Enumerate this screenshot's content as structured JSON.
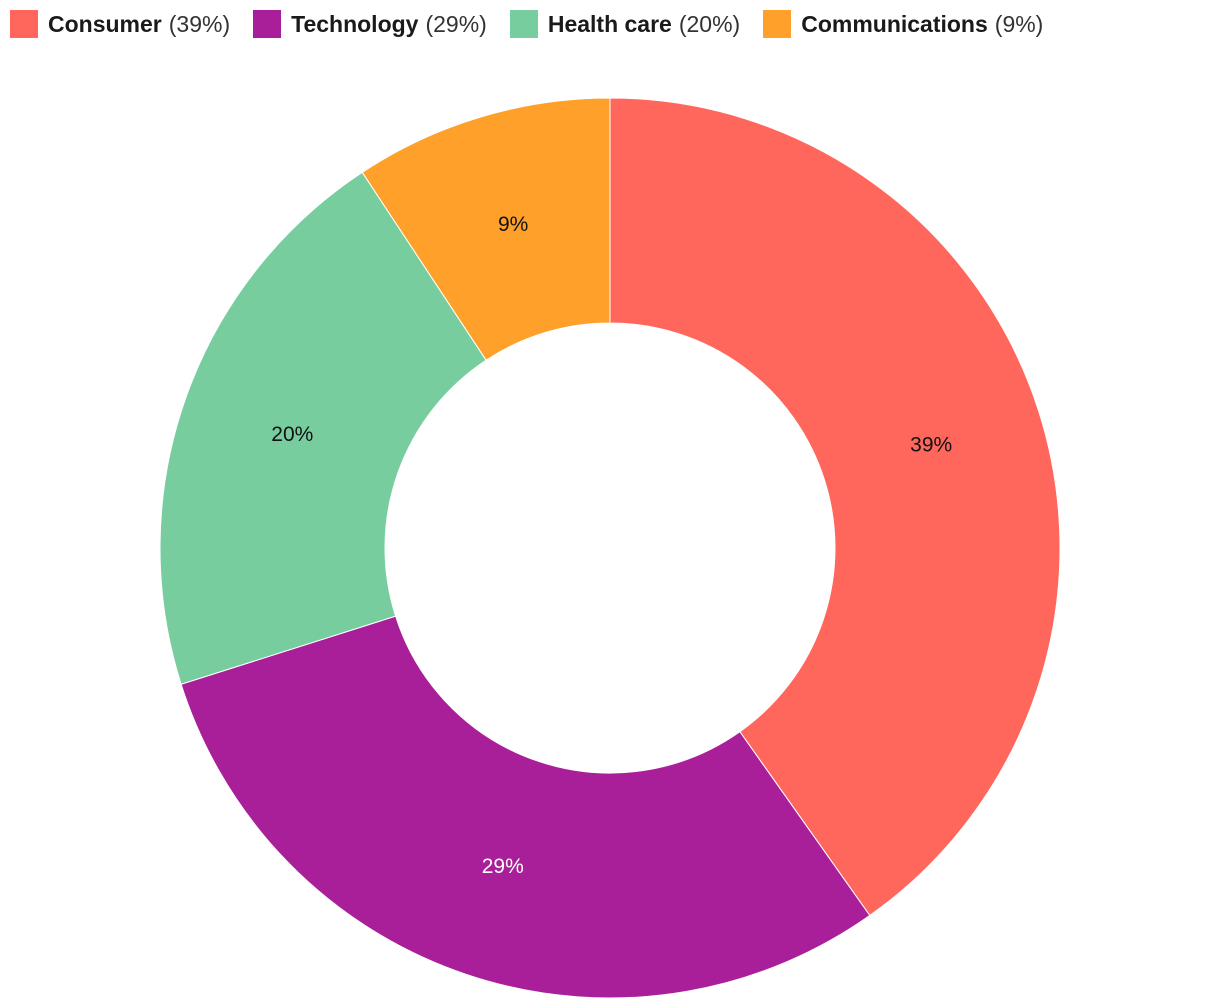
{
  "chart_data": {
    "type": "pie",
    "variant": "donut",
    "legend_position": "top-left",
    "categories": [
      "Consumer",
      "Technology",
      "Health care",
      "Communications"
    ],
    "values": [
      39,
      29,
      20,
      9
    ],
    "value_labels": [
      "39%",
      "29%",
      "20%",
      "9%"
    ],
    "legend_pct_labels": [
      "(39%)",
      "(29%)",
      "(20%)",
      "(9%)"
    ],
    "colors": [
      "#ff675c",
      "#a91f99",
      "#78cd9f",
      "#ffa02a"
    ],
    "label_colors": [
      "#111111",
      "#ffffff",
      "#111111",
      "#111111"
    ]
  }
}
